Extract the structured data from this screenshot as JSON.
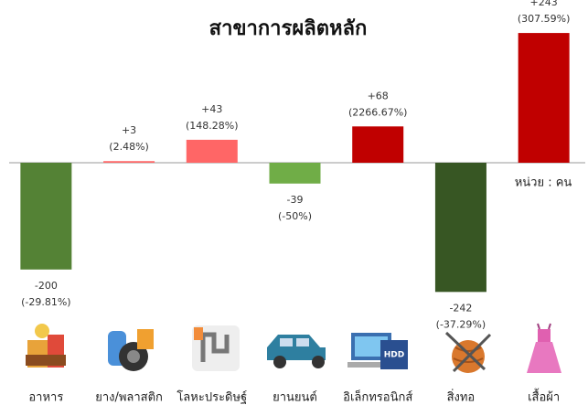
{
  "chart_data": {
    "type": "bar",
    "title": "สาขาการผลิตหลัก",
    "unit_label": "หน่วย : คน",
    "categories": [
      "อาหาร",
      "ยาง/พลาสติก",
      "โลหะประดิษฐ์",
      "ยานยนต์",
      "อิเล็กทรอนิกส์",
      "สิ่งทอ",
      "เสื้อผ้า"
    ],
    "values": [
      -200,
      3,
      43,
      -39,
      68,
      -242,
      243
    ],
    "value_labels": [
      "-200",
      "+3",
      "+43",
      "-39",
      "+68",
      "-242",
      "+243"
    ],
    "change_labels": [
      "(-29.81%)",
      "(2.48%)",
      "(148.28%)",
      "(-50%)",
      "(2266.67%)",
      "(-37.29%)",
      "(307.59%)"
    ],
    "colors": [
      "#548235",
      "#ff6666",
      "#ff6666",
      "#70ad47",
      "#c00000",
      "#375623",
      "#c00000"
    ],
    "ylim": [
      -250,
      250
    ]
  }
}
